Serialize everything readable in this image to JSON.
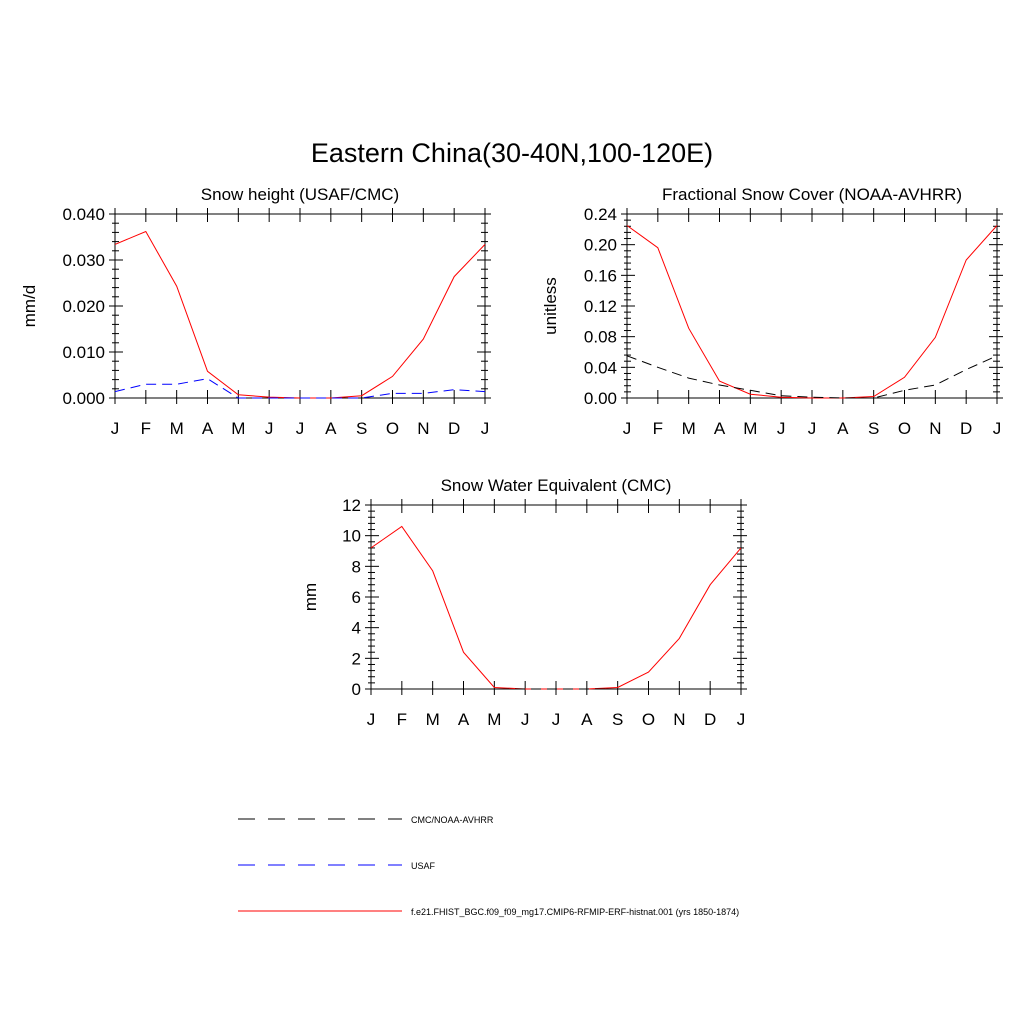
{
  "figure": {
    "title": "Eastern China(30-40N,100-120E)"
  },
  "colors": {
    "model": "#ff0000",
    "usaf": "#0000ff",
    "cmc_noaa": "#000000"
  },
  "legend": [
    {
      "label": "CMC/NOAA-AVHRR",
      "color": "#000000",
      "dash": "dashed"
    },
    {
      "label": "USAF",
      "color": "#0000ff",
      "dash": "dashed"
    },
    {
      "label": "f.e21.FHIST_BGC.f09_f09_mg17.CMIP6-RFMIP-ERF-histnat.001 (yrs 1850-1874)",
      "color": "#ff0000",
      "dash": "solid"
    }
  ],
  "chart_data": [
    {
      "type": "line",
      "title": "Snow height (USAF/CMC)",
      "ylabel": "mm/d",
      "xlabel": "",
      "categories": [
        "J",
        "F",
        "M",
        "A",
        "M",
        "J",
        "J",
        "A",
        "S",
        "O",
        "N",
        "D",
        "J"
      ],
      "ylim": [
        0,
        0.04
      ],
      "yticks": [
        "0.000",
        "0.010",
        "0.020",
        "0.030",
        "0.040"
      ],
      "ytick_values": [
        0,
        0.01,
        0.02,
        0.03,
        0.04
      ],
      "series": [
        {
          "key": "model",
          "values": [
            0.0334,
            0.0362,
            0.0243,
            0.0058,
            0.0007,
            0.0002,
            0.0,
            0.0,
            0.0005,
            0.0047,
            0.0128,
            0.0264,
            0.0334
          ]
        },
        {
          "key": "usaf",
          "values": [
            0.0014,
            0.003,
            0.003,
            0.0042,
            0.0,
            0.0,
            0.0,
            0.0,
            0.0,
            0.001,
            0.001,
            0.0018,
            0.0014
          ]
        }
      ],
      "grid": false
    },
    {
      "type": "line",
      "title": "Fractional Snow Cover (NOAA-AVHRR)",
      "ylabel": "unitless",
      "xlabel": "",
      "categories": [
        "J",
        "F",
        "M",
        "A",
        "M",
        "J",
        "J",
        "A",
        "S",
        "O",
        "N",
        "D",
        "J"
      ],
      "ylim": [
        0,
        0.24
      ],
      "yticks": [
        "0.00",
        "0.04",
        "0.08",
        "0.12",
        "0.16",
        "0.20",
        "0.24"
      ],
      "ytick_values": [
        0,
        0.04,
        0.08,
        0.12,
        0.16,
        0.2,
        0.24
      ],
      "series": [
        {
          "key": "model",
          "values": [
            0.225,
            0.196,
            0.091,
            0.022,
            0.005,
            0.001,
            0.0,
            0.0,
            0.002,
            0.027,
            0.079,
            0.18,
            0.225
          ]
        },
        {
          "key": "cmc_noaa",
          "values": [
            0.055,
            0.04,
            0.026,
            0.017,
            0.01,
            0.003,
            0.001,
            0.0,
            0.0,
            0.01,
            0.017,
            0.037,
            0.055
          ]
        }
      ],
      "grid": false
    },
    {
      "type": "line",
      "title": "Snow Water Equivalent (CMC)",
      "ylabel": "mm",
      "xlabel": "",
      "categories": [
        "J",
        "F",
        "M",
        "A",
        "M",
        "J",
        "J",
        "A",
        "S",
        "O",
        "N",
        "D",
        "J"
      ],
      "ylim": [
        0,
        12
      ],
      "yticks": [
        "0",
        "2",
        "4",
        "6",
        "8",
        "10",
        "12"
      ],
      "ytick_values": [
        0,
        2,
        4,
        6,
        8,
        10,
        12
      ],
      "series": [
        {
          "key": "model",
          "values": [
            9.2,
            10.6,
            7.7,
            2.4,
            0.1,
            0.0,
            0.0,
            0.0,
            0.1,
            1.1,
            3.3,
            6.8,
            9.2
          ]
        },
        {
          "key": "cmc_noaa",
          "values": [
            0,
            0,
            0,
            0,
            0,
            0,
            0,
            0,
            0,
            0,
            0,
            0,
            0
          ]
        }
      ],
      "grid": false
    }
  ]
}
